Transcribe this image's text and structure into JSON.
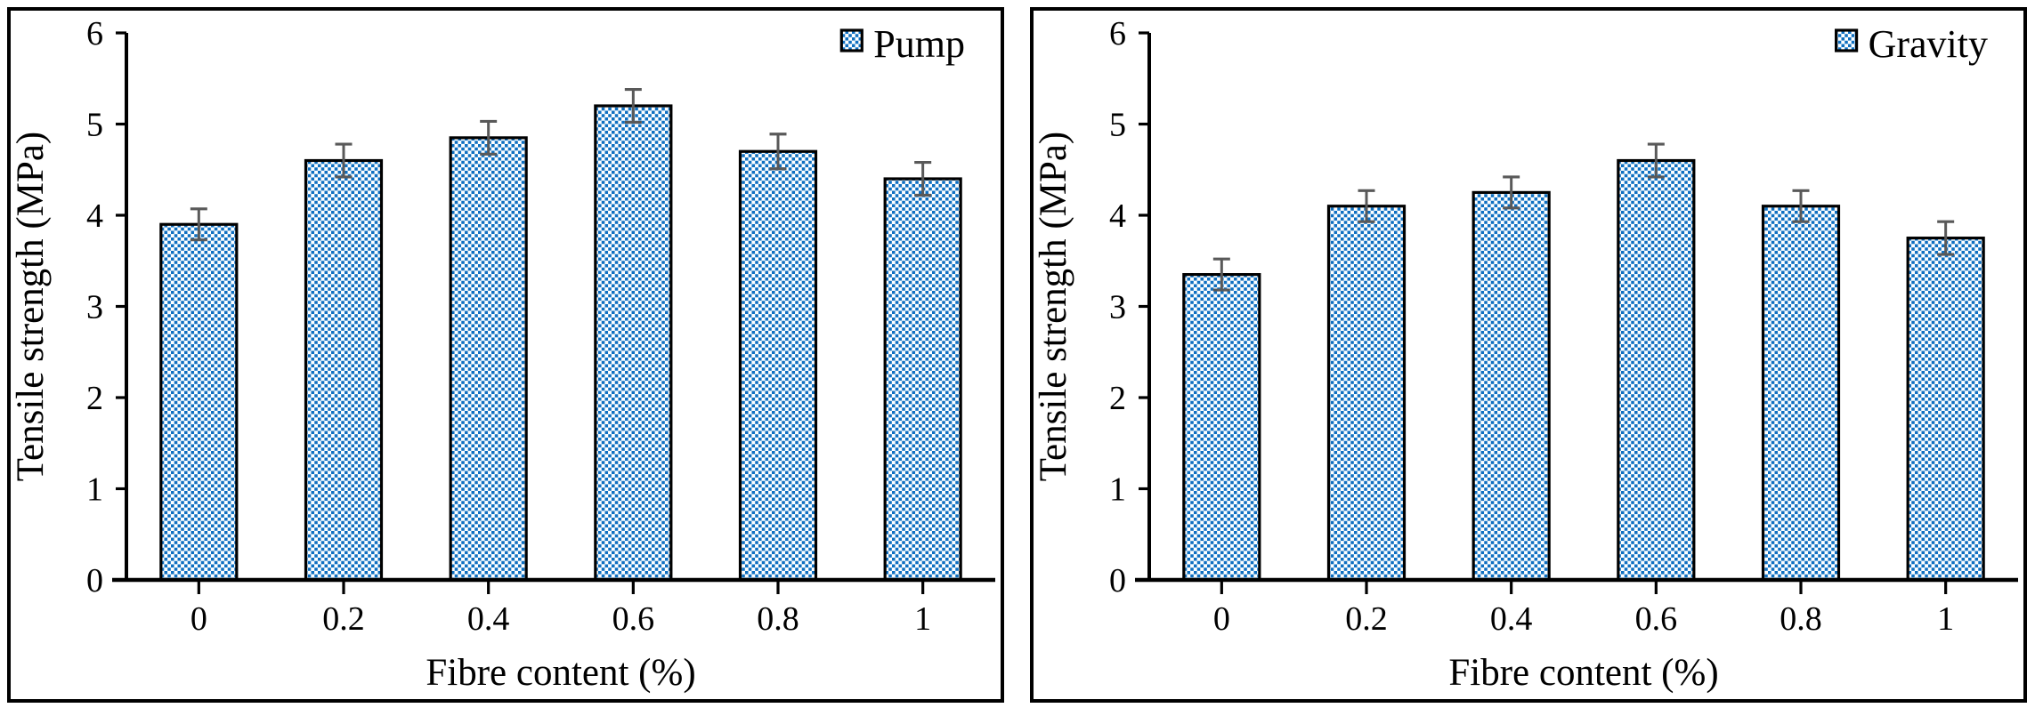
{
  "figure": {
    "background": "#ffffff",
    "panel_border_color": "#000000"
  },
  "chart_data": [
    {
      "type": "bar",
      "title": "",
      "legend": [
        "Pump"
      ],
      "legend_position": "top-right",
      "categories": [
        "0",
        "0.2",
        "0.4",
        "0.6",
        "0.8",
        "1"
      ],
      "series": [
        {
          "name": "Pump",
          "values": [
            3.9,
            4.6,
            4.85,
            5.2,
            4.7,
            4.4
          ],
          "errors": [
            0.17,
            0.18,
            0.18,
            0.18,
            0.19,
            0.18
          ]
        }
      ],
      "xlabel": "Fibre content (%)",
      "ylabel": "Tensile strength (MPa)",
      "ylim": [
        0,
        6
      ],
      "yticks": [
        0,
        1,
        2,
        3,
        4,
        5,
        6
      ],
      "grid": false,
      "bar_fill_pattern": "blue-checker-dots-on-white",
      "bar_pattern_color": "#0e6fc1",
      "bar_border_color": "#000000",
      "error_bar_color": "#595959"
    },
    {
      "type": "bar",
      "title": "",
      "legend": [
        "Gravity"
      ],
      "legend_position": "top-right",
      "categories": [
        "0",
        "0.2",
        "0.4",
        "0.6",
        "0.8",
        "1"
      ],
      "series": [
        {
          "name": "Gravity",
          "values": [
            3.35,
            4.1,
            4.25,
            4.6,
            4.1,
            3.75
          ],
          "errors": [
            0.17,
            0.17,
            0.17,
            0.18,
            0.17,
            0.18
          ]
        }
      ],
      "xlabel": "Fibre content (%)",
      "ylabel": "Tensile strength (MPa)",
      "ylim": [
        0,
        6
      ],
      "yticks": [
        0,
        1,
        2,
        3,
        4,
        5,
        6
      ],
      "grid": false,
      "bar_fill_pattern": "blue-checker-dots-on-white",
      "bar_pattern_color": "#0e6fc1",
      "bar_border_color": "#000000",
      "error_bar_color": "#595959"
    }
  ]
}
